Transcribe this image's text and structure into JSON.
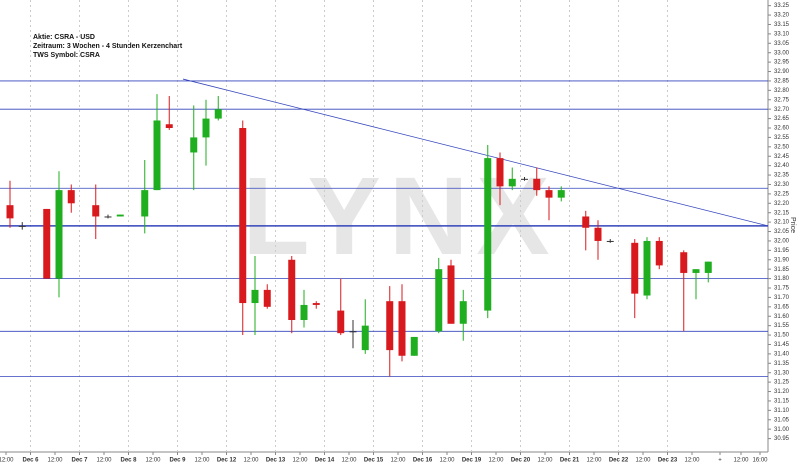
{
  "chart_data": {
    "type": "candlestick",
    "annotations": [
      "Aktie: CSRA - USD",
      "Zeitraum: 3 Wochen - 4 Stunden Kerzenchart",
      "TWS Symbol: CSRA"
    ],
    "watermark": "LYNX",
    "y_label": "Price",
    "x_labels": [
      "12:00",
      "Dec 6",
      "12:00",
      "Dec 7",
      "12:00",
      "Dec 8",
      "12:00",
      "Dec 9",
      "12:00",
      "Dec 12",
      "12:00",
      "Dec 13",
      "12:00",
      "Dec 14",
      "12:00",
      "Dec 15",
      "12:00",
      "Dec 16",
      "12:00",
      "Dec 19",
      "12:00",
      "Dec 20",
      "12:00",
      "Dec 21",
      "12:00",
      "Dec 22",
      "12:00",
      "Dec 23",
      "12:00",
      "+",
      "12:00",
      "16:00"
    ],
    "open": [
      32.19,
      32.08,
      null,
      32.17,
      31.8,
      32.27,
      null,
      32.19,
      32.13,
      32.13,
      null,
      32.13,
      32.27,
      32.62,
      null,
      32.47,
      32.55,
      32.65,
      null,
      32.6,
      31.67,
      31.74,
      null,
      31.9,
      31.58,
      31.67,
      null,
      31.63,
      31.52,
      31.42,
      null,
      31.68,
      31.68,
      31.39,
      null,
      31.52,
      31.87,
      31.56,
      null,
      31.63,
      32.44,
      32.29,
      32.33,
      32.33,
      32.27,
      32.23,
      null,
      32.13,
      32.07,
      32.0,
      null,
      31.99,
      31.71,
      32.0,
      null,
      31.94,
      31.83,
      31.83
    ],
    "high": [
      32.32,
      32.1,
      null,
      32.17,
      32.37,
      32.3,
      null,
      32.3,
      32.14,
      32.14,
      null,
      32.43,
      32.78,
      32.77,
      null,
      32.72,
      32.75,
      32.77,
      null,
      32.64,
      31.92,
      31.77,
      null,
      31.92,
      31.74,
      31.68,
      null,
      31.8,
      31.58,
      31.69,
      null,
      31.76,
      31.77,
      31.49,
      null,
      31.91,
      31.9,
      31.74,
      null,
      32.51,
      32.47,
      32.39,
      32.34,
      32.39,
      32.29,
      32.29,
      null,
      32.16,
      32.11,
      32.01,
      null,
      32.01,
      32.02,
      32.02,
      null,
      31.95,
      31.85,
      31.89
    ],
    "low": [
      32.07,
      32.06,
      null,
      31.8,
      31.7,
      32.15,
      null,
      32.01,
      32.12,
      32.13,
      null,
      32.04,
      32.27,
      32.59,
      null,
      32.27,
      32.4,
      32.64,
      null,
      31.5,
      31.5,
      31.64,
      null,
      31.51,
      31.54,
      31.64,
      null,
      31.5,
      31.43,
      31.4,
      null,
      31.28,
      31.36,
      31.39,
      null,
      31.51,
      31.56,
      31.47,
      null,
      31.59,
      32.19,
      32.27,
      32.32,
      32.24,
      32.11,
      32.21,
      null,
      31.95,
      31.9,
      31.99,
      null,
      31.59,
      31.69,
      31.85,
      null,
      31.52,
      31.69,
      31.78
    ],
    "close": [
      32.12,
      32.08,
      null,
      31.8,
      32.27,
      32.2,
      null,
      32.13,
      32.13,
      32.14,
      null,
      32.27,
      32.64,
      32.6,
      null,
      32.55,
      32.65,
      32.7,
      null,
      31.67,
      31.74,
      31.65,
      null,
      31.58,
      31.66,
      31.66,
      null,
      31.51,
      31.52,
      31.55,
      null,
      31.42,
      31.39,
      31.49,
      null,
      31.85,
      31.56,
      31.68,
      null,
      32.44,
      32.29,
      32.33,
      32.33,
      32.27,
      32.23,
      32.27,
      null,
      32.07,
      32.0,
      32.0,
      null,
      31.72,
      32.0,
      31.87,
      null,
      31.83,
      31.85,
      31.89
    ],
    "up_color": "#1fae1f",
    "down_color": "#d81a1f",
    "doji_color": "#333333",
    "hlines": [
      32.85,
      32.7,
      32.28,
      32.08,
      31.8,
      31.52,
      31.28
    ],
    "hline_color": "#3344bb",
    "trendline": [
      32.86,
      32.08
    ],
    "ylim": [
      30.9,
      33.28
    ],
    "yticks": [
      30.95,
      {
        "value": 31.0,
        "label": "31.00"
      },
      31.05,
      {
        "value": 31.1,
        "label": "31.10"
      },
      31.15,
      {
        "value": 31.2,
        "label": "31.20"
      },
      31.25,
      {
        "value": 31.3,
        "label": "31.30"
      },
      31.35,
      {
        "value": 31.4,
        "label": "31.40"
      },
      31.45,
      {
        "value": 31.5,
        "label": "31.50"
      },
      31.55,
      {
        "value": 31.6,
        "label": "31.60"
      },
      31.65,
      {
        "value": 31.7,
        "label": "31.70"
      },
      31.75,
      {
        "value": 31.8,
        "label": "31.80"
      },
      31.85,
      {
        "value": 31.9,
        "label": "31.90"
      },
      31.95,
      {
        "value": 32.0,
        "label": "32.00"
      },
      32.05,
      {
        "value": 32.1,
        "label": "32.10"
      },
      32.15,
      {
        "value": 32.2,
        "label": "32.20"
      },
      32.25,
      {
        "value": 32.3,
        "label": "32.30"
      },
      32.35,
      {
        "value": 32.4,
        "label": "32.40"
      },
      32.45,
      {
        "value": 32.5,
        "label": "32.50"
      },
      32.55,
      {
        "value": 32.6,
        "label": "32.60"
      },
      32.65,
      {
        "value": 32.7,
        "label": "32.70"
      },
      32.75,
      {
        "value": 32.8,
        "label": "32.80"
      },
      32.85,
      {
        "value": 32.9,
        "label": "32.90"
      },
      32.95,
      {
        "value": 33.0,
        "label": "33.00"
      },
      33.05,
      {
        "value": 33.1,
        "label": "33.10"
      },
      33.15,
      {
        "value": 33.2,
        "label": "33.20"
      },
      33.25
    ]
  }
}
